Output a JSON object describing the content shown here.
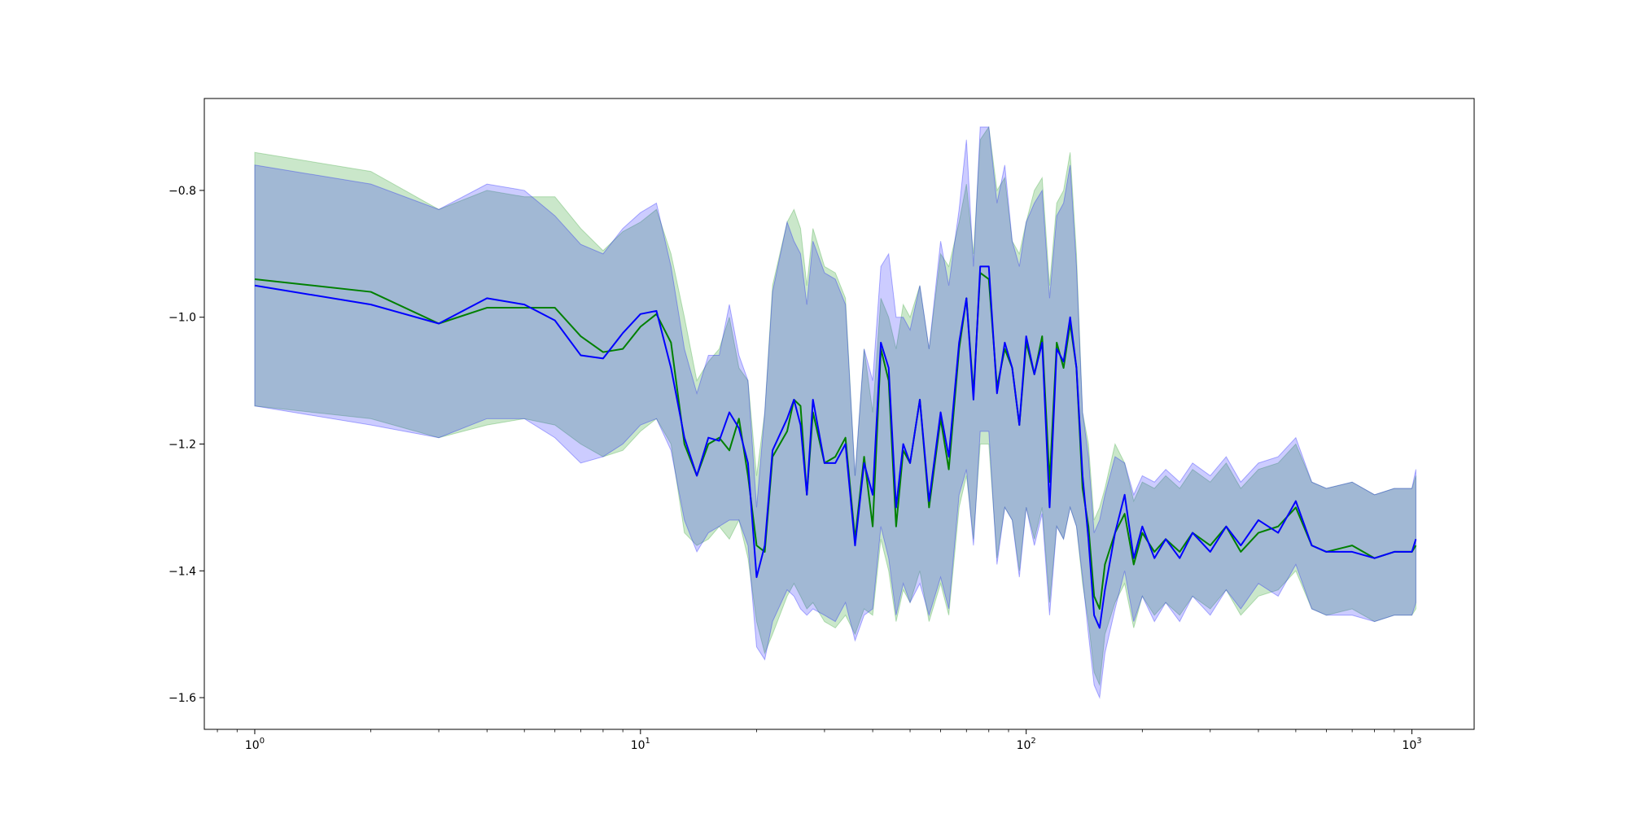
{
  "chart_data": {
    "type": "line",
    "title": "",
    "xlabel": "",
    "ylabel": "",
    "x_scale": "log",
    "xlim": [
      0.74,
      1450
    ],
    "ylim": [
      -1.65,
      -0.655
    ],
    "grid": false,
    "legend": "none",
    "x_ticks": [
      {
        "value": 1,
        "base": "10",
        "exp": "0"
      },
      {
        "value": 10,
        "base": "10",
        "exp": "1"
      },
      {
        "value": 100,
        "base": "10",
        "exp": "2"
      },
      {
        "value": 1000,
        "base": "10",
        "exp": "3"
      }
    ],
    "y_ticks": [
      {
        "value": -0.8,
        "label": "−0.8"
      },
      {
        "value": -1.0,
        "label": "−1.0"
      },
      {
        "value": -1.2,
        "label": "−1.2"
      },
      {
        "value": -1.4,
        "label": "−1.4"
      },
      {
        "value": -1.6,
        "label": "−1.6"
      }
    ],
    "series": [
      {
        "color": "#008000",
        "band_color": "#2ca02c",
        "band_opacity": 0.25,
        "x": [
          1,
          2,
          3,
          4,
          5,
          6,
          7,
          8,
          9,
          10,
          11,
          12,
          13,
          14,
          15,
          16,
          17,
          18,
          19,
          20,
          21,
          22,
          24,
          25,
          26,
          27,
          28,
          30,
          32,
          34,
          36,
          38,
          40,
          42,
          44,
          46,
          48,
          50,
          53,
          56,
          60,
          63,
          67,
          70,
          73,
          76,
          80,
          84,
          88,
          92,
          96,
          100,
          105,
          110,
          115,
          120,
          125,
          130,
          135,
          140,
          145,
          150,
          155,
          160,
          170,
          180,
          190,
          200,
          215,
          230,
          250,
          270,
          300,
          330,
          360,
          400,
          450,
          500,
          550,
          600,
          700,
          800,
          900,
          1000,
          1024
        ],
        "values": [
          -0.94,
          -0.96,
          -1.01,
          -0.985,
          -0.985,
          -0.985,
          -1.03,
          -1.055,
          -1.05,
          -1.015,
          -0.995,
          -1.04,
          -1.2,
          -1.25,
          -1.2,
          -1.19,
          -1.21,
          -1.16,
          -1.25,
          -1.36,
          -1.37,
          -1.22,
          -1.18,
          -1.13,
          -1.14,
          -1.28,
          -1.15,
          -1.23,
          -1.22,
          -1.19,
          -1.35,
          -1.22,
          -1.33,
          -1.05,
          -1.1,
          -1.33,
          -1.21,
          -1.23,
          -1.13,
          -1.3,
          -1.16,
          -1.24,
          -1.05,
          -0.97,
          -1.12,
          -0.93,
          -0.94,
          -1.11,
          -1.05,
          -1.08,
          -1.17,
          -1.04,
          -1.09,
          -1.03,
          -1.26,
          -1.04,
          -1.08,
          -1.01,
          -1.08,
          -1.27,
          -1.33,
          -1.44,
          -1.46,
          -1.39,
          -1.34,
          -1.31,
          -1.39,
          -1.34,
          -1.37,
          -1.35,
          -1.37,
          -1.34,
          -1.36,
          -1.33,
          -1.37,
          -1.34,
          -1.33,
          -1.3,
          -1.36,
          -1.37,
          -1.36,
          -1.38,
          -1.37,
          -1.37,
          -1.36
        ],
        "upper": [
          -0.74,
          -0.77,
          -0.83,
          -0.8,
          -0.81,
          -0.81,
          -0.86,
          -0.895,
          -0.865,
          -0.85,
          -0.83,
          -0.9,
          -1.0,
          -1.1,
          -1.07,
          -1.05,
          -1.0,
          -1.08,
          -1.1,
          -1.25,
          -1.15,
          -0.95,
          -0.85,
          -0.83,
          -0.86,
          -0.95,
          -0.86,
          -0.92,
          -0.93,
          -0.97,
          -1.25,
          -1.05,
          -1.15,
          -0.97,
          -1.0,
          -1.05,
          -0.98,
          -1.0,
          -0.95,
          -1.05,
          -0.9,
          -0.92,
          -0.85,
          -0.79,
          -0.9,
          -0.72,
          -0.7,
          -0.8,
          -0.78,
          -0.88,
          -0.9,
          -0.85,
          -0.8,
          -0.78,
          -0.95,
          -0.82,
          -0.8,
          -0.74,
          -0.9,
          -1.15,
          -1.2,
          -1.32,
          -1.3,
          -1.27,
          -1.2,
          -1.23,
          -1.29,
          -1.26,
          -1.27,
          -1.25,
          -1.27,
          -1.24,
          -1.26,
          -1.23,
          -1.27,
          -1.24,
          -1.23,
          -1.2,
          -1.26,
          -1.27,
          -1.26,
          -1.28,
          -1.27,
          -1.27,
          -1.25
        ],
        "lower": [
          -1.14,
          -1.16,
          -1.19,
          -1.17,
          -1.16,
          -1.17,
          -1.2,
          -1.22,
          -1.21,
          -1.18,
          -1.16,
          -1.2,
          -1.34,
          -1.36,
          -1.35,
          -1.33,
          -1.35,
          -1.32,
          -1.38,
          -1.48,
          -1.53,
          -1.5,
          -1.44,
          -1.42,
          -1.44,
          -1.46,
          -1.45,
          -1.48,
          -1.49,
          -1.47,
          -1.5,
          -1.46,
          -1.47,
          -1.35,
          -1.4,
          -1.48,
          -1.43,
          -1.45,
          -1.4,
          -1.48,
          -1.42,
          -1.47,
          -1.3,
          -1.25,
          -1.35,
          -1.2,
          -1.2,
          -1.38,
          -1.3,
          -1.32,
          -1.4,
          -1.3,
          -1.35,
          -1.3,
          -1.45,
          -1.33,
          -1.35,
          -1.3,
          -1.33,
          -1.42,
          -1.48,
          -1.56,
          -1.58,
          -1.5,
          -1.45,
          -1.42,
          -1.49,
          -1.44,
          -1.47,
          -1.45,
          -1.47,
          -1.44,
          -1.46,
          -1.43,
          -1.47,
          -1.44,
          -1.43,
          -1.4,
          -1.46,
          -1.47,
          -1.46,
          -1.48,
          -1.47,
          -1.47,
          -1.46
        ]
      },
      {
        "color": "#0000ff",
        "band_color": "#0000ff",
        "band_opacity": 0.2,
        "x": [
          1,
          2,
          3,
          4,
          5,
          6,
          7,
          8,
          9,
          10,
          11,
          12,
          13,
          14,
          15,
          16,
          17,
          18,
          19,
          20,
          21,
          22,
          24,
          25,
          26,
          27,
          28,
          30,
          32,
          34,
          36,
          38,
          40,
          42,
          44,
          46,
          48,
          50,
          53,
          56,
          60,
          63,
          67,
          70,
          73,
          76,
          80,
          84,
          88,
          92,
          96,
          100,
          105,
          110,
          115,
          120,
          125,
          130,
          135,
          140,
          145,
          150,
          155,
          160,
          170,
          180,
          190,
          200,
          215,
          230,
          250,
          270,
          300,
          330,
          360,
          400,
          450,
          500,
          550,
          600,
          700,
          800,
          900,
          1000,
          1024
        ],
        "values": [
          -0.95,
          -0.98,
          -1.01,
          -0.97,
          -0.98,
          -1.005,
          -1.06,
          -1.065,
          -1.025,
          -0.995,
          -0.99,
          -1.08,
          -1.19,
          -1.25,
          -1.19,
          -1.195,
          -1.15,
          -1.175,
          -1.23,
          -1.41,
          -1.36,
          -1.21,
          -1.16,
          -1.13,
          -1.17,
          -1.28,
          -1.13,
          -1.23,
          -1.23,
          -1.2,
          -1.36,
          -1.23,
          -1.28,
          -1.04,
          -1.08,
          -1.3,
          -1.2,
          -1.23,
          -1.13,
          -1.29,
          -1.15,
          -1.22,
          -1.04,
          -0.97,
          -1.13,
          -0.92,
          -0.92,
          -1.12,
          -1.04,
          -1.08,
          -1.17,
          -1.03,
          -1.09,
          -1.04,
          -1.3,
          -1.05,
          -1.07,
          -1.0,
          -1.08,
          -1.25,
          -1.35,
          -1.47,
          -1.49,
          -1.43,
          -1.34,
          -1.28,
          -1.38,
          -1.33,
          -1.38,
          -1.35,
          -1.38,
          -1.34,
          -1.37,
          -1.33,
          -1.36,
          -1.32,
          -1.34,
          -1.29,
          -1.36,
          -1.37,
          -1.37,
          -1.38,
          -1.37,
          -1.37,
          -1.35
        ],
        "upper": [
          -0.76,
          -0.79,
          -0.83,
          -0.79,
          -0.8,
          -0.84,
          -0.885,
          -0.9,
          -0.86,
          -0.835,
          -0.82,
          -0.92,
          -1.05,
          -1.12,
          -1.06,
          -1.06,
          -0.98,
          -1.06,
          -1.1,
          -1.3,
          -1.15,
          -0.96,
          -0.85,
          -0.88,
          -0.9,
          -0.98,
          -0.88,
          -0.93,
          -0.94,
          -0.98,
          -1.25,
          -1.05,
          -1.1,
          -0.92,
          -0.9,
          -1.0,
          -1.0,
          -1.02,
          -0.95,
          -1.05,
          -0.88,
          -0.95,
          -0.83,
          -0.72,
          -0.92,
          -0.7,
          -0.7,
          -0.82,
          -0.76,
          -0.88,
          -0.92,
          -0.85,
          -0.82,
          -0.8,
          -0.97,
          -0.84,
          -0.82,
          -0.76,
          -0.92,
          -1.15,
          -1.22,
          -1.34,
          -1.32,
          -1.28,
          -1.22,
          -1.23,
          -1.28,
          -1.25,
          -1.26,
          -1.24,
          -1.26,
          -1.23,
          -1.25,
          -1.22,
          -1.26,
          -1.23,
          -1.22,
          -1.19,
          -1.26,
          -1.27,
          -1.26,
          -1.28,
          -1.27,
          -1.27,
          -1.24
        ],
        "lower": [
          -1.14,
          -1.17,
          -1.19,
          -1.16,
          -1.16,
          -1.19,
          -1.23,
          -1.22,
          -1.2,
          -1.17,
          -1.16,
          -1.21,
          -1.32,
          -1.37,
          -1.34,
          -1.33,
          -1.32,
          -1.32,
          -1.36,
          -1.52,
          -1.54,
          -1.48,
          -1.43,
          -1.44,
          -1.46,
          -1.47,
          -1.46,
          -1.47,
          -1.48,
          -1.45,
          -1.51,
          -1.47,
          -1.46,
          -1.33,
          -1.38,
          -1.47,
          -1.42,
          -1.45,
          -1.42,
          -1.47,
          -1.41,
          -1.46,
          -1.28,
          -1.24,
          -1.36,
          -1.18,
          -1.18,
          -1.39,
          -1.3,
          -1.32,
          -1.41,
          -1.3,
          -1.36,
          -1.31,
          -1.47,
          -1.33,
          -1.35,
          -1.3,
          -1.33,
          -1.41,
          -1.5,
          -1.58,
          -1.6,
          -1.53,
          -1.46,
          -1.4,
          -1.48,
          -1.44,
          -1.48,
          -1.45,
          -1.48,
          -1.44,
          -1.47,
          -1.43,
          -1.46,
          -1.42,
          -1.44,
          -1.39,
          -1.46,
          -1.47,
          -1.47,
          -1.48,
          -1.47,
          -1.47,
          -1.45
        ]
      }
    ]
  }
}
